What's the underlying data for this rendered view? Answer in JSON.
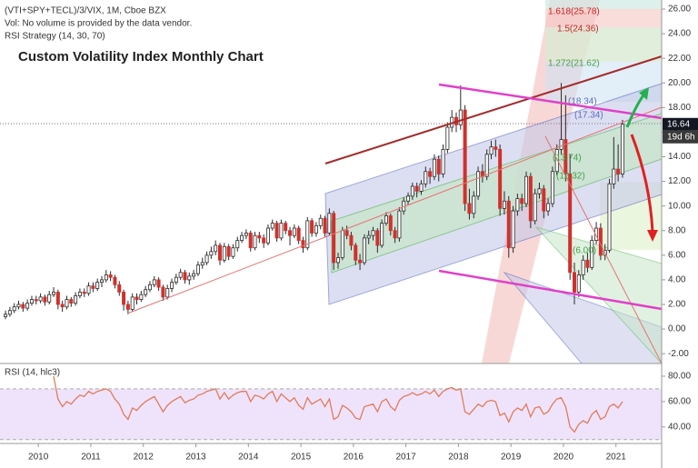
{
  "chart_data": {
    "type": "candlestick",
    "symbol": "(VTI+SPY+TECL)/3/VIX, 1M, Cboe BZX",
    "volume_note": "Vol: No volume is provided by the data vendor.",
    "strategy": "RSI Strategy (14, 30, 70)",
    "title": "Custom Volatility Index Monthly Chart",
    "countdown": "19d 6h",
    "fib_labels": [
      "1.618(25.78)",
      "1.5(24.36)",
      "1.272(21.62)",
      "(18.34)",
      "(17.34)",
      "(13.74)",
      "(12.32)",
      "(6.00)"
    ],
    "up_color": "#ffffff",
    "down_color": "#d0312d",
    "wick_color": "#2b2b2b",
    "ylim": [
      -2.8,
      26.74
    ],
    "yticks": [
      {
        "value": -2,
        "label": "-2.00"
      },
      {
        "value": 0,
        "label": "0.00"
      },
      {
        "value": 2,
        "label": "2.00"
      },
      {
        "value": 4,
        "label": "4.00"
      },
      {
        "value": 6,
        "label": "6.00"
      },
      {
        "value": 8,
        "label": "8.00"
      },
      {
        "value": 10,
        "label": "10.00"
      },
      {
        "value": 12,
        "label": "12.00"
      },
      {
        "value": 14,
        "label": "14.00"
      },
      {
        "value": 16,
        "label": "16.00"
      },
      {
        "value": 18,
        "label": "18.00"
      },
      {
        "value": 20,
        "label": "20.00"
      },
      {
        "value": 22,
        "label": "22.00"
      },
      {
        "value": 24,
        "label": "24.00"
      },
      {
        "value": 26,
        "label": "26.00"
      }
    ],
    "xlim": [
      2009.27,
      2021.87
    ],
    "xticks": [
      2010,
      2011,
      2012,
      2013,
      2014,
      2015,
      2016,
      2017,
      2018,
      2019,
      2020,
      2021
    ],
    "x": [
      "2009-05",
      "2009-06",
      "2009-07",
      "2009-08",
      "2009-09",
      "2009-10",
      "2009-11",
      "2009-12",
      "2010-01",
      "2010-02",
      "2010-03",
      "2010-04",
      "2010-05",
      "2010-06",
      "2010-07",
      "2010-08",
      "2010-09",
      "2010-10",
      "2010-11",
      "2010-12",
      "2011-01",
      "2011-02",
      "2011-03",
      "2011-04",
      "2011-05",
      "2011-06",
      "2011-07",
      "2011-08",
      "2011-09",
      "2011-10",
      "2011-11",
      "2011-12",
      "2012-01",
      "2012-02",
      "2012-03",
      "2012-04",
      "2012-05",
      "2012-06",
      "2012-07",
      "2012-08",
      "2012-09",
      "2012-10",
      "2012-11",
      "2012-12",
      "2013-01",
      "2013-02",
      "2013-03",
      "2013-04",
      "2013-05",
      "2013-06",
      "2013-07",
      "2013-08",
      "2013-09",
      "2013-10",
      "2013-11",
      "2013-12",
      "2014-01",
      "2014-02",
      "2014-03",
      "2014-04",
      "2014-05",
      "2014-06",
      "2014-07",
      "2014-08",
      "2014-09",
      "2014-10",
      "2014-11",
      "2014-12",
      "2015-01",
      "2015-02",
      "2015-03",
      "2015-04",
      "2015-05",
      "2015-06",
      "2015-07",
      "2015-08",
      "2015-09",
      "2015-10",
      "2015-11",
      "2015-12",
      "2016-01",
      "2016-02",
      "2016-03",
      "2016-04",
      "2016-05",
      "2016-06",
      "2016-07",
      "2016-08",
      "2016-09",
      "2016-10",
      "2016-11",
      "2016-12",
      "2017-01",
      "2017-02",
      "2017-03",
      "2017-04",
      "2017-05",
      "2017-06",
      "2017-07",
      "2017-08",
      "2017-09",
      "2017-10",
      "2017-11",
      "2017-12",
      "2018-01",
      "2018-02",
      "2018-03",
      "2018-04",
      "2018-05",
      "2018-06",
      "2018-07",
      "2018-08",
      "2018-09",
      "2018-10",
      "2018-11",
      "2018-12",
      "2019-01",
      "2019-02",
      "2019-03",
      "2019-04",
      "2019-05",
      "2019-06",
      "2019-07",
      "2019-08",
      "2019-09",
      "2019-10",
      "2019-11",
      "2019-12",
      "2020-01",
      "2020-02",
      "2020-03",
      "2020-04",
      "2020-05",
      "2020-06",
      "2020-07",
      "2020-08",
      "2020-09",
      "2020-10",
      "2020-11",
      "2020-12",
      "2021-01",
      "2021-02"
    ],
    "candles": [
      [
        1.0,
        1.5,
        0.8,
        1.2
      ],
      [
        1.2,
        1.8,
        1.0,
        1.5
      ],
      [
        1.5,
        2.1,
        1.3,
        1.8
      ],
      [
        1.8,
        2.3,
        1.6,
        2.0
      ],
      [
        2.0,
        2.2,
        1.4,
        1.7
      ],
      [
        1.7,
        2.4,
        1.5,
        2.1
      ],
      [
        2.1,
        2.7,
        1.9,
        2.4
      ],
      [
        2.4,
        2.7,
        2.0,
        2.3
      ],
      [
        2.3,
        2.9,
        2.1,
        2.6
      ],
      [
        2.6,
        2.8,
        1.9,
        2.2
      ],
      [
        2.2,
        3.1,
        2.0,
        2.8
      ],
      [
        2.8,
        3.4,
        2.6,
        3.0
      ],
      [
        3.0,
        3.2,
        1.6,
        2.0
      ],
      [
        2.0,
        2.3,
        1.4,
        1.8
      ],
      [
        1.8,
        2.7,
        1.6,
        2.4
      ],
      [
        2.4,
        2.6,
        1.8,
        2.1
      ],
      [
        2.1,
        3.0,
        1.9,
        2.7
      ],
      [
        2.7,
        3.3,
        2.5,
        3.0
      ],
      [
        3.0,
        3.3,
        2.6,
        2.9
      ],
      [
        2.9,
        3.8,
        2.7,
        3.5
      ],
      [
        3.5,
        3.8,
        3.0,
        3.3
      ],
      [
        3.3,
        4.1,
        3.1,
        3.8
      ],
      [
        3.8,
        4.3,
        3.4,
        4.0
      ],
      [
        4.0,
        4.8,
        3.8,
        4.4
      ],
      [
        4.4,
        4.7,
        3.9,
        4.2
      ],
      [
        4.2,
        4.4,
        3.3,
        3.6
      ],
      [
        3.6,
        3.9,
        2.7,
        3.0
      ],
      [
        3.0,
        3.2,
        1.5,
        2.0
      ],
      [
        2.0,
        2.3,
        1.2,
        1.6
      ],
      [
        1.6,
        2.9,
        1.4,
        2.6
      ],
      [
        2.6,
        2.9,
        2.0,
        2.4
      ],
      [
        2.4,
        3.1,
        2.2,
        2.8
      ],
      [
        2.8,
        3.5,
        2.6,
        3.2
      ],
      [
        3.2,
        3.9,
        3.0,
        3.6
      ],
      [
        3.6,
        4.3,
        3.4,
        4.0
      ],
      [
        4.0,
        4.2,
        3.1,
        3.4
      ],
      [
        3.4,
        3.6,
        2.3,
        2.6
      ],
      [
        2.6,
        3.6,
        2.4,
        3.3
      ],
      [
        3.3,
        4.1,
        3.0,
        3.8
      ],
      [
        3.8,
        4.5,
        3.6,
        4.2
      ],
      [
        4.2,
        4.9,
        4.0,
        4.6
      ],
      [
        4.6,
        4.8,
        3.7,
        4.0
      ],
      [
        4.0,
        4.6,
        3.6,
        4.3
      ],
      [
        4.3,
        4.8,
        4.0,
        4.5
      ],
      [
        4.5,
        5.5,
        4.3,
        5.2
      ],
      [
        5.2,
        5.8,
        4.9,
        5.4
      ],
      [
        5.4,
        6.3,
        5.2,
        6.0
      ],
      [
        6.0,
        6.7,
        5.7,
        6.3
      ],
      [
        6.3,
        7.2,
        6.0,
        6.8
      ],
      [
        6.8,
        7.0,
        5.2,
        5.6
      ],
      [
        5.6,
        7.0,
        5.4,
        6.7
      ],
      [
        6.7,
        6.9,
        5.6,
        5.9
      ],
      [
        5.9,
        6.9,
        5.7,
        6.6
      ],
      [
        6.6,
        7.5,
        6.3,
        7.2
      ],
      [
        7.2,
        7.9,
        7.0,
        7.6
      ],
      [
        7.6,
        8.1,
        7.3,
        7.8
      ],
      [
        7.8,
        8.0,
        6.3,
        6.6
      ],
      [
        6.6,
        7.9,
        6.4,
        7.6
      ],
      [
        7.6,
        7.9,
        7.0,
        7.4
      ],
      [
        7.4,
        7.7,
        6.6,
        7.0
      ],
      [
        7.0,
        8.5,
        6.8,
        8.2
      ],
      [
        8.2,
        8.9,
        8.0,
        8.6
      ],
      [
        8.6,
        8.8,
        7.1,
        7.4
      ],
      [
        7.4,
        8.9,
        7.2,
        8.6
      ],
      [
        8.6,
        8.8,
        7.7,
        8.0
      ],
      [
        8.0,
        8.3,
        6.8,
        7.6
      ],
      [
        7.6,
        8.5,
        7.4,
        8.2
      ],
      [
        8.2,
        8.4,
        6.9,
        7.2
      ],
      [
        7.2,
        7.5,
        6.2,
        6.6
      ],
      [
        6.6,
        9.1,
        6.4,
        8.8
      ],
      [
        8.8,
        9.0,
        7.5,
        7.8
      ],
      [
        7.8,
        8.7,
        7.5,
        8.4
      ],
      [
        8.4,
        9.3,
        8.1,
        9.0
      ],
      [
        9.0,
        9.2,
        7.5,
        7.8
      ],
      [
        7.8,
        9.8,
        7.6,
        9.4
      ],
      [
        9.4,
        9.6,
        4.8,
        5.4
      ],
      [
        5.4,
        6.2,
        4.9,
        5.8
      ],
      [
        5.8,
        8.3,
        5.6,
        8.0
      ],
      [
        8.0,
        8.4,
        7.3,
        7.6
      ],
      [
        7.6,
        7.9,
        6.4,
        6.8
      ],
      [
        6.8,
        7.0,
        5.2,
        5.6
      ],
      [
        5.6,
        6.1,
        4.8,
        5.4
      ],
      [
        5.4,
        7.7,
        5.2,
        7.4
      ],
      [
        7.4,
        8.0,
        6.9,
        7.6
      ],
      [
        7.6,
        8.3,
        7.2,
        8.0
      ],
      [
        8.0,
        8.2,
        6.2,
        6.8
      ],
      [
        6.8,
        8.9,
        6.6,
        8.6
      ],
      [
        8.6,
        9.5,
        8.4,
        9.2
      ],
      [
        9.2,
        9.4,
        7.6,
        8.0
      ],
      [
        8.0,
        8.3,
        7.0,
        7.4
      ],
      [
        7.4,
        9.9,
        7.1,
        9.6
      ],
      [
        9.6,
        10.7,
        9.3,
        10.4
      ],
      [
        10.4,
        11.1,
        10.1,
        10.8
      ],
      [
        10.8,
        11.9,
        10.5,
        11.6
      ],
      [
        11.6,
        11.9,
        10.7,
        11.2
      ],
      [
        11.2,
        12.1,
        10.9,
        11.8
      ],
      [
        11.8,
        13.2,
        11.5,
        12.8
      ],
      [
        12.8,
        13.1,
        11.8,
        12.4
      ],
      [
        12.4,
        14.2,
        12.1,
        13.8
      ],
      [
        13.8,
        14.1,
        12.0,
        12.6
      ],
      [
        12.6,
        15.0,
        12.3,
        14.6
      ],
      [
        14.6,
        16.8,
        14.3,
        16.4
      ],
      [
        16.4,
        17.8,
        16.0,
        17.2
      ],
      [
        17.2,
        17.6,
        16.0,
        16.6
      ],
      [
        16.6,
        19.8,
        16.2,
        17.8
      ],
      [
        17.8,
        18.2,
        9.6,
        10.2
      ],
      [
        10.2,
        11.4,
        8.9,
        9.4
      ],
      [
        9.4,
        11.2,
        9.0,
        10.8
      ],
      [
        10.8,
        13.2,
        10.5,
        12.8
      ],
      [
        12.8,
        13.4,
        11.9,
        12.4
      ],
      [
        12.4,
        14.6,
        12.1,
        14.2
      ],
      [
        14.2,
        15.3,
        13.8,
        14.8
      ],
      [
        14.8,
        15.4,
        14.0,
        14.6
      ],
      [
        14.6,
        15.0,
        9.2,
        9.8
      ],
      [
        9.8,
        11.2,
        9.3,
        10.4
      ],
      [
        10.4,
        10.8,
        5.8,
        6.6
      ],
      [
        6.6,
        10.0,
        6.2,
        9.6
      ],
      [
        9.6,
        11.0,
        9.2,
        10.6
      ],
      [
        10.6,
        11.0,
        9.6,
        10.2
      ],
      [
        10.2,
        12.8,
        9.9,
        12.4
      ],
      [
        12.4,
        12.7,
        8.2,
        8.8
      ],
      [
        8.8,
        11.4,
        8.5,
        11.0
      ],
      [
        11.0,
        11.9,
        10.6,
        11.4
      ],
      [
        11.4,
        11.7,
        9.0,
        9.6
      ],
      [
        9.6,
        10.6,
        9.2,
        10.2
      ],
      [
        10.2,
        13.2,
        9.9,
        12.8
      ],
      [
        12.8,
        15.0,
        12.5,
        14.6
      ],
      [
        14.6,
        20.0,
        14.2,
        15.4
      ],
      [
        15.4,
        19.0,
        12.0,
        12.6
      ],
      [
        12.6,
        14.2,
        4.0,
        4.6
      ],
      [
        4.6,
        5.4,
        2.0,
        3.0
      ],
      [
        3.0,
        4.8,
        2.6,
        4.4
      ],
      [
        4.4,
        6.0,
        4.0,
        5.6
      ],
      [
        5.6,
        6.2,
        4.6,
        5.0
      ],
      [
        5.0,
        7.6,
        4.8,
        7.2
      ],
      [
        7.2,
        8.7,
        6.9,
        8.2
      ],
      [
        8.2,
        8.6,
        5.6,
        6.0
      ],
      [
        6.0,
        6.9,
        5.6,
        6.4
      ],
      [
        6.4,
        12.2,
        6.2,
        11.8
      ],
      [
        11.8,
        15.6,
        11.4,
        13.0
      ],
      [
        13.0,
        15.0,
        12.0,
        12.6
      ],
      [
        12.6,
        17.0,
        12.3,
        16.64
      ]
    ],
    "rsi": {
      "name": "RSI (14, hlc3)",
      "color": "#e07b5a",
      "band_color": "#efe3fb",
      "levels": [
        30,
        70
      ],
      "ylim": [
        27,
        90
      ],
      "yticks": [
        {
          "value": 40,
          "label": "40.00"
        },
        {
          "value": 60,
          "label": "60.00"
        },
        {
          "value": 80,
          "label": "80.00"
        }
      ],
      "values": [
        null,
        null,
        null,
        null,
        null,
        null,
        null,
        null,
        null,
        null,
        null,
        80,
        62,
        56,
        60,
        58,
        62,
        65,
        64,
        68,
        66,
        68,
        69,
        70,
        68,
        62,
        58,
        50,
        46,
        55,
        53,
        57,
        60,
        62,
        64,
        58,
        52,
        57,
        60,
        62,
        64,
        59,
        61,
        62,
        65,
        66,
        68,
        69,
        70,
        62,
        67,
        62,
        65,
        67,
        68,
        68,
        60,
        65,
        64,
        62,
        66,
        68,
        60,
        66,
        63,
        60,
        63,
        57,
        54,
        63,
        58,
        60,
        62,
        56,
        62,
        46,
        48,
        57,
        55,
        52,
        47,
        46,
        56,
        57,
        58,
        52,
        60,
        62,
        56,
        53,
        61,
        64,
        65,
        67,
        65,
        66,
        68,
        66,
        69,
        64,
        68,
        70,
        71,
        69,
        70,
        52,
        50,
        54,
        58,
        56,
        60,
        61,
        60,
        49,
        51,
        44,
        52,
        55,
        53,
        58,
        48,
        55,
        56,
        50,
        52,
        58,
        62,
        63,
        56,
        40,
        36,
        42,
        45,
        43,
        50,
        53,
        46,
        48,
        56,
        58,
        55,
        60
      ]
    }
  }
}
